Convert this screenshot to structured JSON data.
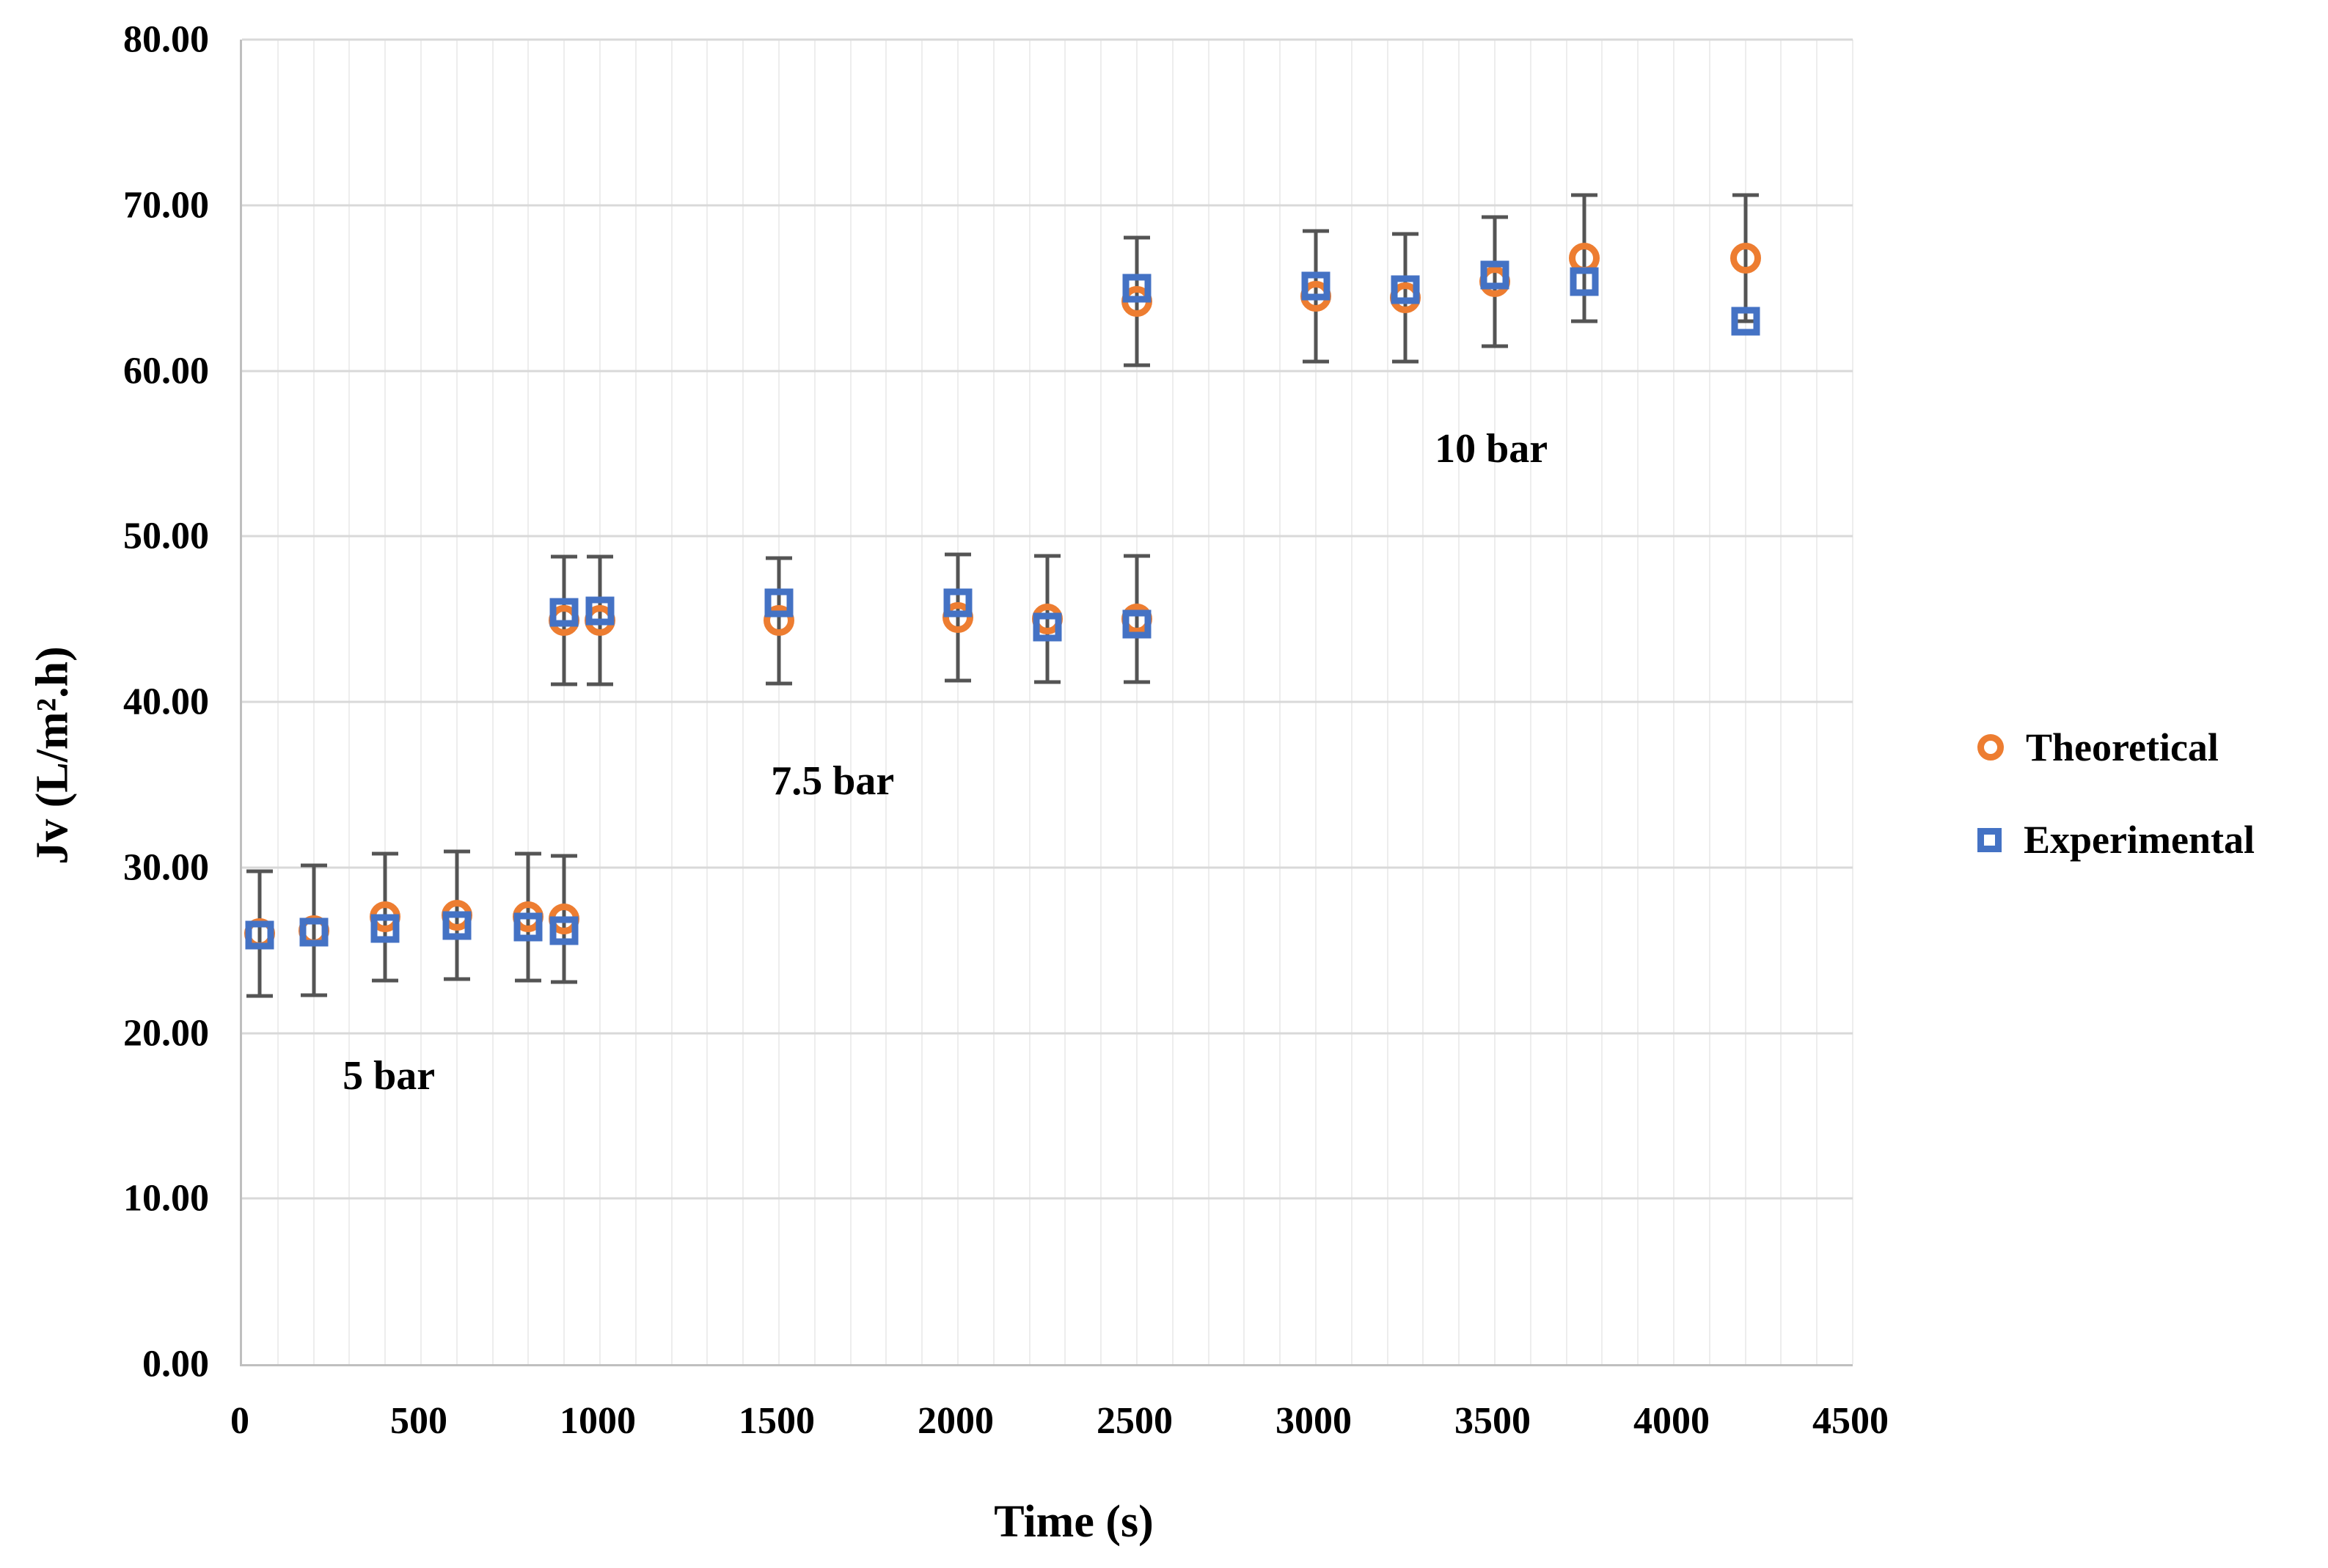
{
  "chart_data": {
    "type": "scatter",
    "title": "",
    "xlabel": "Time (s)",
    "ylabel": "Jv (L/m².h)",
    "xlim": [
      0,
      4500
    ],
    "ylim": [
      0,
      80
    ],
    "x_ticks": {
      "values": [
        0,
        500,
        1000,
        1500,
        2000,
        2500,
        3000,
        3500,
        4000,
        4500
      ],
      "labels": [
        "0",
        "500",
        "1000",
        "1500",
        "2000",
        "2500",
        "3000",
        "3500",
        "4000",
        "4500"
      ]
    },
    "y_ticks": {
      "values": [
        0,
        10,
        20,
        30,
        40,
        50,
        60,
        70,
        80
      ],
      "labels": [
        "0.00",
        "10.00",
        "20.00",
        "30.00",
        "40.00",
        "50.00",
        "60.00",
        "70.00",
        "80.00"
      ]
    },
    "x_minor_gridline_step": 100,
    "grid": {
      "horizontal_major": true,
      "vertical_minor": true,
      "legend_position": "right"
    },
    "colors": {
      "theoretical": "#ED7D31",
      "experimental": "#4472C4",
      "error_bar": "#545454",
      "major_gridline": "#D9D9D9",
      "minor_gridline": "#EDEDED",
      "axis_line": "#BFBFBF",
      "text": "#000000"
    },
    "series": [
      {
        "name": "Theoretical",
        "marker": "circle",
        "color": "#ED7D31"
      },
      {
        "name": "Experimental",
        "marker": "square",
        "color": "#4472C4"
      }
    ],
    "error_bars": {
      "attached_to": "Theoretical",
      "style": "plus-minus, capped"
    },
    "annotations": [
      {
        "text": "5 bar",
        "x": 410,
        "y": 17.4
      },
      {
        "text": "7.5 bar",
        "x": 1650,
        "y": 35.2
      },
      {
        "text": "10 bar",
        "x": 3490,
        "y": 55.3
      }
    ],
    "points": [
      {
        "t": 50,
        "pressure": "5 bar",
        "theoretical": 26.0,
        "experimental": 25.9,
        "error": 3.75
      },
      {
        "t": 200,
        "pressure": "5 bar",
        "theoretical": 26.2,
        "experimental": 26.1,
        "error": 3.9
      },
      {
        "t": 400,
        "pressure": "5 bar",
        "theoretical": 27.0,
        "experimental": 26.3,
        "error": 3.85
      },
      {
        "t": 600,
        "pressure": "5 bar",
        "theoretical": 27.1,
        "experimental": 26.5,
        "error": 3.85
      },
      {
        "t": 800,
        "pressure": "5 bar",
        "theoretical": 27.0,
        "experimental": 26.4,
        "error": 3.85
      },
      {
        "t": 900,
        "pressure": "5 bar",
        "theoretical": 26.9,
        "experimental": 26.2,
        "error": 3.8
      },
      {
        "t": 900,
        "pressure": "7.5 bar",
        "theoretical": 44.9,
        "experimental": 45.4,
        "error": 3.85
      },
      {
        "t": 1000,
        "pressure": "7.5 bar",
        "theoretical": 44.9,
        "experimental": 45.5,
        "error": 3.85
      },
      {
        "t": 1500,
        "pressure": "7.5 bar",
        "theoretical": 44.9,
        "experimental": 46.0,
        "error": 3.8
      },
      {
        "t": 2000,
        "pressure": "7.5 bar",
        "theoretical": 45.1,
        "experimental": 46.0,
        "error": 3.8
      },
      {
        "t": 2250,
        "pressure": "7.5 bar",
        "theoretical": 45.0,
        "experimental": 44.5,
        "error": 3.8
      },
      {
        "t": 2500,
        "pressure": "7.5 bar",
        "theoretical": 45.0,
        "experimental": 44.7,
        "error": 3.8
      },
      {
        "t": 2500,
        "pressure": "10 bar",
        "theoretical": 64.2,
        "experimental": 65.0,
        "error": 3.85
      },
      {
        "t": 3000,
        "pressure": "10 bar",
        "theoretical": 64.5,
        "experimental": 65.1,
        "error": 3.95
      },
      {
        "t": 3250,
        "pressure": "10 bar",
        "theoretical": 64.4,
        "experimental": 64.9,
        "error": 3.85
      },
      {
        "t": 3500,
        "pressure": "10 bar",
        "theoretical": 65.4,
        "experimental": 65.8,
        "error": 3.9
      },
      {
        "t": 3750,
        "pressure": "10 bar",
        "theoretical": 66.8,
        "experimental": 65.4,
        "error": 3.8
      },
      {
        "t": 4200,
        "pressure": "10 bar",
        "theoretical": 66.8,
        "experimental": 63.0,
        "error": 3.8
      }
    ]
  }
}
